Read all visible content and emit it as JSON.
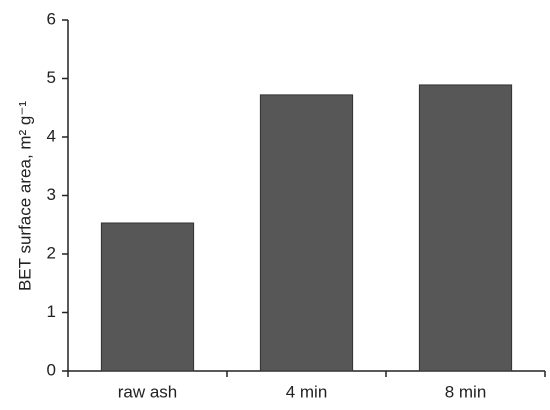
{
  "chart_data": {
    "type": "bar",
    "y_label": "BET surface area, m² g⁻¹",
    "categories": [
      "raw ash",
      "4 min",
      "8 min"
    ],
    "values": [
      2.53,
      4.72,
      4.89
    ],
    "color": "#575757",
    "ylim": [
      0,
      6
    ],
    "yticks": [
      0,
      1,
      2,
      3,
      4,
      5,
      6
    ],
    "grid": false
  }
}
